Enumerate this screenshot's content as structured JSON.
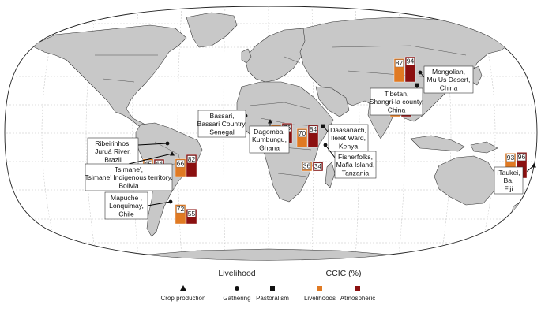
{
  "colors": {
    "ocean": "#ffffff",
    "land": "#c8c8c8",
    "border": "#333333",
    "livelihoods_bar": "#e07a23",
    "atmospheric_bar": "#8b1010",
    "leader": "#000000"
  },
  "legend": {
    "livelihood_title": "Livelihood",
    "livelihood_items": [
      {
        "symbol": "triangle",
        "label": "Crop production"
      },
      {
        "symbol": "circle",
        "label": "Gathering"
      },
      {
        "symbol": "square",
        "label": "Pastoralism"
      }
    ],
    "ccic_title": "CCIC (%)",
    "ccic_items": [
      {
        "label": "Livelihoods"
      },
      {
        "label": "Atmospheric"
      }
    ]
  },
  "sites": [
    {
      "id": "ribeirinhos",
      "lines": [
        "Ribeirinhos,",
        "Juruá River,",
        "Brazil"
      ],
      "livelihood": "gathering",
      "livelihoods_pct": 45,
      "atmospheric_pct": 44
    },
    {
      "id": "tsimane",
      "lines": [
        "Tsimane',",
        "Tsimane' Indigenous territory,",
        "Bolivia"
      ],
      "livelihood": "crop production",
      "livelihoods_pct": 66,
      "atmospheric_pct": 82
    },
    {
      "id": "mapuche",
      "lines": [
        "Mapuche ,",
        "Lonquimay,",
        "Chile"
      ],
      "livelihood": "gathering",
      "livelihoods_pct": 72,
      "atmospheric_pct": 55
    },
    {
      "id": "bassari",
      "lines": [
        "Bassari,",
        "Bassari Country,",
        "Senegal"
      ],
      "livelihood": "gathering",
      "livelihoods_pct": 64,
      "atmospheric_pct": 46
    },
    {
      "id": "dagomba",
      "lines": [
        "Dagomba,",
        "Kumbungu,",
        "Ghana"
      ],
      "livelihood": "crop production",
      "livelihoods_pct": 69,
      "atmospheric_pct": 76
    },
    {
      "id": "daasanach",
      "lines": [
        "Daasanach,",
        "Ileret Ward,",
        "Kenya"
      ],
      "livelihood": "pastoralism",
      "livelihoods_pct": 70,
      "atmospheric_pct": 84
    },
    {
      "id": "fisherfolks",
      "lines": [
        "Fisherfolks,",
        "Mafia Island,",
        "Tanzania"
      ],
      "livelihood": "gathering",
      "livelihoods_pct": 36,
      "atmospheric_pct": 34
    },
    {
      "id": "mongolian",
      "lines": [
        "Mongolian,",
        "Mu Us Desert,",
        "China"
      ],
      "livelihood": "gathering",
      "livelihoods_pct": 87,
      "atmospheric_pct": 94
    },
    {
      "id": "tibetan",
      "lines": [
        "Tibetan,",
        "Shangri-la county,",
        "China"
      ],
      "livelihood": "pastoralism",
      "livelihoods_pct": 56,
      "atmospheric_pct": 67
    },
    {
      "id": "itaukei",
      "lines": [
        "iTaukei,",
        "Ba,",
        "Fiji"
      ],
      "livelihood": "crop production",
      "livelihoods_pct": 93,
      "atmospheric_pct": 96
    }
  ]
}
